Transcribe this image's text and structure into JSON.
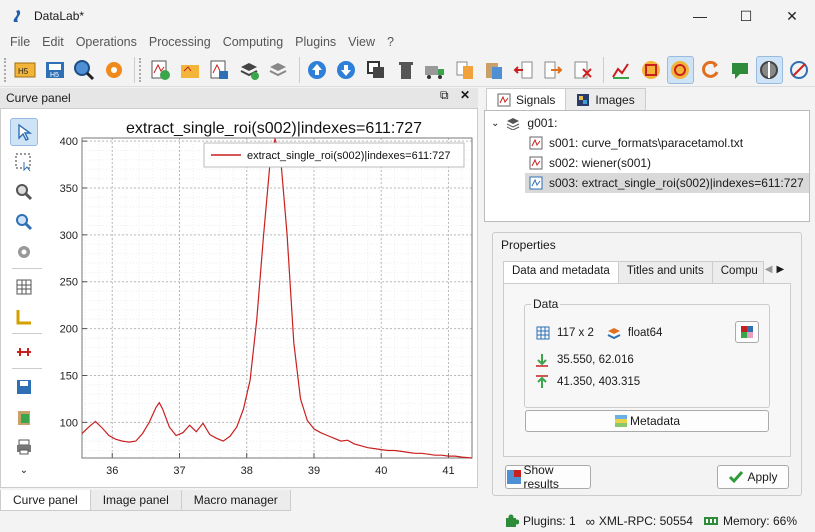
{
  "window": {
    "title": "DataLab*",
    "minimize": "—",
    "maximize": "☐",
    "close": "✕"
  },
  "menu": [
    "File",
    "Edit",
    "Operations",
    "Processing",
    "Computing",
    "Plugins",
    "View",
    "?"
  ],
  "curve_panel": {
    "title": "Curve panel",
    "float_icon": "⧉",
    "close_icon": "✕"
  },
  "chart_data": {
    "type": "line",
    "title": "extract_single_roi(s002)|indexes=611:727",
    "legend": [
      "extract_single_roi(s002)|indexes=611:727"
    ],
    "legend_position": "top-right",
    "xlim": [
      35.55,
      41.35
    ],
    "ylim": [
      62,
      403.3
    ],
    "xticks": [
      36,
      37,
      38,
      39,
      40,
      41
    ],
    "yticks": [
      100,
      150,
      200,
      250,
      300,
      350,
      400
    ],
    "grid": true,
    "series_color": "#c8201e",
    "x": [
      35.55,
      35.65,
      35.75,
      35.85,
      35.95,
      36.05,
      36.15,
      36.25,
      36.35,
      36.45,
      36.55,
      36.65,
      36.7,
      36.75,
      36.85,
      36.95,
      37.05,
      37.15,
      37.25,
      37.35,
      37.45,
      37.55,
      37.65,
      37.75,
      37.85,
      37.95,
      38.05,
      38.15,
      38.25,
      38.35,
      38.42,
      38.5,
      38.6,
      38.7,
      38.8,
      38.9,
      39.0,
      39.1,
      39.2,
      39.3,
      39.4,
      39.5,
      39.6,
      39.7,
      39.8,
      39.9,
      40.0,
      40.1,
      40.2,
      40.3,
      40.4,
      40.5,
      40.6,
      40.7,
      40.8,
      40.9,
      41.0,
      41.1,
      41.2,
      41.35
    ],
    "y": [
      88,
      95,
      101,
      94,
      86,
      82,
      80,
      79,
      80,
      88,
      100,
      116,
      121,
      114,
      95,
      86,
      89,
      97,
      90,
      99,
      87,
      83,
      80,
      85,
      95,
      114,
      145,
      210,
      300,
      380,
      402,
      385,
      300,
      185,
      125,
      102,
      93,
      89,
      86,
      83,
      80,
      81,
      77,
      75,
      73,
      72,
      71,
      70,
      70,
      69,
      68,
      67,
      67,
      66,
      65,
      65,
      64,
      64,
      63,
      62
    ]
  },
  "right_tabs": [
    "Signals",
    "Images"
  ],
  "tree": {
    "group": "g001:",
    "items": [
      "s001: curve_formats\\paracetamol.txt",
      "s002: wiener(s001)",
      "s003: extract_single_roi(s002)|indexes=611:727"
    ]
  },
  "properties": {
    "title": "Properties",
    "tabs": [
      "Data and metadata",
      "Titles and units",
      "Compu"
    ],
    "data_label": "Data",
    "shape": "117 x 2",
    "dtype": "float64",
    "min": "35.550, 62.016",
    "max": "41.350, 403.315",
    "metadata_btn": "Metadata",
    "show_results_btn": "Show results",
    "apply_btn": "Apply"
  },
  "bottom_tabs": [
    "Curve panel",
    "Image panel",
    "Macro manager"
  ],
  "status": {
    "plugins": "Plugins: 1",
    "xmlrpc": "XML-RPC: 50554",
    "memory": "Memory: 66%"
  }
}
